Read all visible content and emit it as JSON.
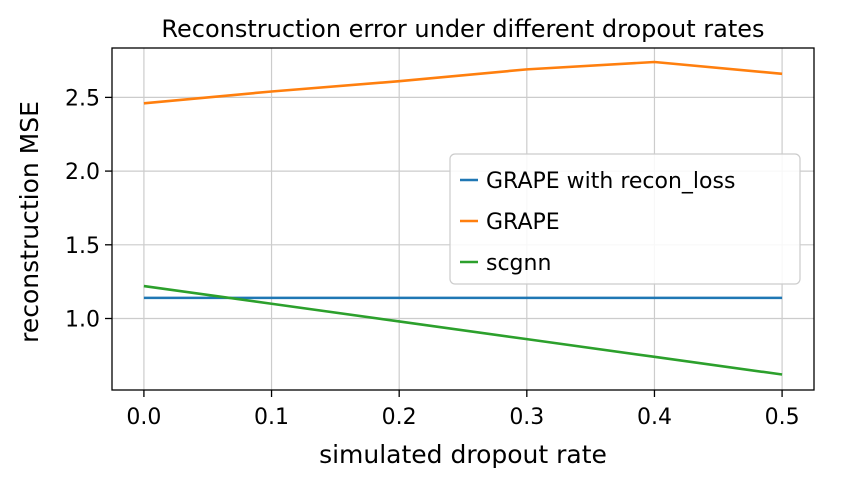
{
  "chart_data": {
    "type": "line",
    "title": "Reconstruction error under different dropout rates",
    "xlabel": "simulated dropout rate",
    "ylabel": "reconstruction MSE",
    "x": [
      0.0,
      0.1,
      0.2,
      0.3,
      0.4,
      0.5
    ],
    "xlim": [
      -0.025,
      0.525
    ],
    "ylim": [
      0.515,
      2.835
    ],
    "xticks": [
      "0.0",
      "0.1",
      "0.2",
      "0.3",
      "0.4",
      "0.5"
    ],
    "yticks": [
      "1.0",
      "1.5",
      "2.0",
      "2.5"
    ],
    "grid": true,
    "legend_position": "center-right",
    "series": [
      {
        "name": "GRAPE with recon_loss",
        "color": "#1f77b4",
        "values": [
          1.14,
          1.14,
          1.14,
          1.14,
          1.14,
          1.14
        ]
      },
      {
        "name": "GRAPE",
        "color": "#ff7f0e",
        "values": [
          2.46,
          2.54,
          2.61,
          2.69,
          2.74,
          2.66
        ]
      },
      {
        "name": "scgnn",
        "color": "#2ca02c",
        "values": [
          1.22,
          1.1,
          0.98,
          0.86,
          0.74,
          0.62
        ]
      }
    ]
  }
}
